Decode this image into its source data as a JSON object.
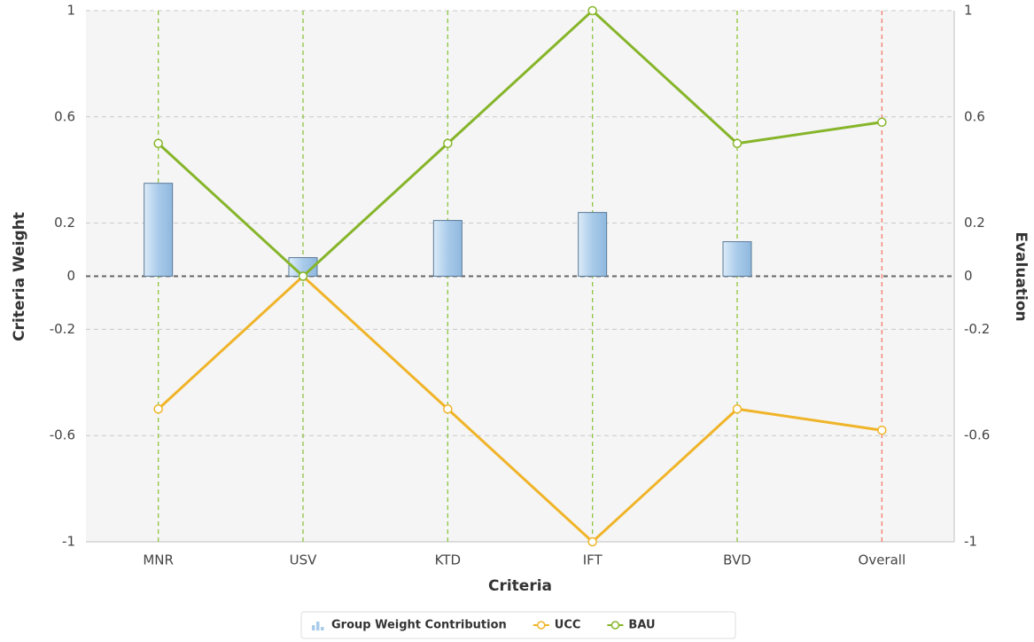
{
  "chart_data": {
    "type": "combo",
    "categories": [
      "MNR",
      "USV",
      "KTD",
      "IFT",
      "BVD",
      "Overall"
    ],
    "xlabel": "Criteria",
    "ylabel": "Criteria Weight",
    "y2label": "Evaluation",
    "series": [
      {
        "name": "Group Weight Contribution",
        "type": "bar",
        "color": "#a9cbea",
        "values": [
          0.35,
          0.07,
          0.21,
          0.24,
          0.13,
          null
        ]
      },
      {
        "name": "UCC",
        "type": "line",
        "axis": "y2",
        "color": "#f0b429",
        "values": [
          -0.5,
          0,
          -0.5,
          -1,
          -0.5,
          -0.58
        ]
      },
      {
        "name": "BAU",
        "type": "line",
        "axis": "y2",
        "color": "#86b52a",
        "values": [
          0.5,
          0,
          0.5,
          1,
          0.5,
          0.58
        ]
      }
    ],
    "ylim": [
      -1,
      1
    ],
    "yticks": [
      -1,
      -0.6,
      -0.2,
      0,
      0.2,
      0.6,
      1
    ],
    "y2lim": [
      -1,
      1
    ],
    "y2ticks": [
      -1,
      -0.6,
      -0.2,
      0,
      0.2,
      0.6,
      1
    ],
    "grid": true,
    "legend": "bottom"
  }
}
